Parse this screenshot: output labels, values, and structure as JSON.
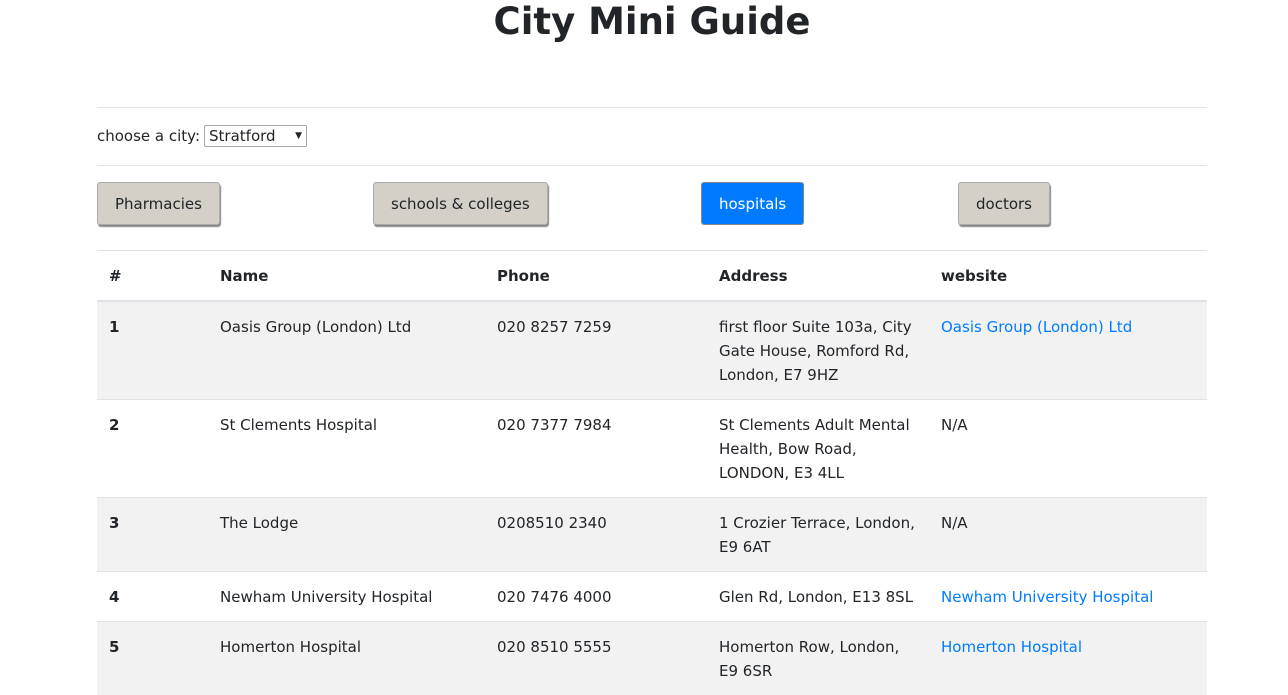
{
  "title": "City Mini Guide",
  "city_label": "choose a city:",
  "city_selected": "Stratford",
  "categories": [
    "Pharmacies",
    "schools & colleges",
    "hospitals",
    "doctors"
  ],
  "active_category": "hospitals",
  "accent_color": "#007bff",
  "table": {
    "headers": [
      "#",
      "Name",
      "Phone",
      "Address",
      "website"
    ],
    "rows": [
      {
        "num": "1",
        "name": "Oasis Group (London) Ltd",
        "phone": "020 8257 7259",
        "address": "first floor Suite 103a, City Gate House, Romford Rd, London, E7 9HZ",
        "website": "Oasis Group (London) Ltd",
        "link": true
      },
      {
        "num": "2",
        "name": "St Clements Hospital",
        "phone": "020 7377 7984",
        "address": "St Clements Adult Mental Health, Bow Road, LONDON, E3 4LL",
        "website": "N/A",
        "link": false
      },
      {
        "num": "3",
        "name": "The Lodge",
        "phone": "0208510 2340",
        "address": "1 Crozier Terrace, London, E9 6AT",
        "website": "N/A",
        "link": false
      },
      {
        "num": "4",
        "name": "Newham University Hospital",
        "phone": "020 7476 4000",
        "address": "Glen Rd, London, E13 8SL",
        "website": "Newham University Hospital",
        "link": true
      },
      {
        "num": "5",
        "name": "Homerton Hospital",
        "phone": "020 8510 5555",
        "address": "Homerton Row, London, E9 6SR",
        "website": "Homerton Hospital",
        "link": true
      }
    ]
  }
}
